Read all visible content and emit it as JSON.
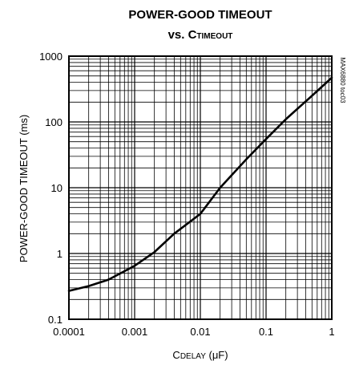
{
  "chart_data": {
    "type": "line",
    "title": {
      "line1": "POWER-GOOD TIMEOUT",
      "line2_prefix": "vs. C",
      "line2_subscript": "TIMEOUT"
    },
    "xlabel": {
      "main": "C",
      "subscript": "DELAY",
      "unit": " (μF)"
    },
    "ylabel": "POWER-GOOD TIMEOUT (ms)",
    "side_label": "MAX6880 toc03",
    "x_scale": "log",
    "y_scale": "log",
    "xlim": [
      0.0001,
      1
    ],
    "ylim": [
      0.1,
      1000
    ],
    "x_ticks": [
      0.0001,
      0.001,
      0.01,
      0.1,
      1
    ],
    "x_tick_labels": [
      "0.0001",
      "0.001",
      "0.01",
      "0.1",
      "1"
    ],
    "y_ticks": [
      0.1,
      1,
      10,
      100,
      1000
    ],
    "y_tick_labels": [
      "0.1",
      "1",
      "10",
      "100",
      "1000"
    ],
    "grid": true,
    "series": [
      {
        "x": [
          0.0001,
          0.0002,
          0.0004,
          0.001,
          0.002,
          0.004,
          0.01,
          0.02,
          0.05,
          0.1,
          0.2,
          0.5,
          1
        ],
        "y": [
          0.27,
          0.32,
          0.4,
          0.65,
          1.05,
          2.0,
          4.0,
          10.0,
          27,
          55,
          110,
          250,
          470
        ]
      }
    ]
  }
}
